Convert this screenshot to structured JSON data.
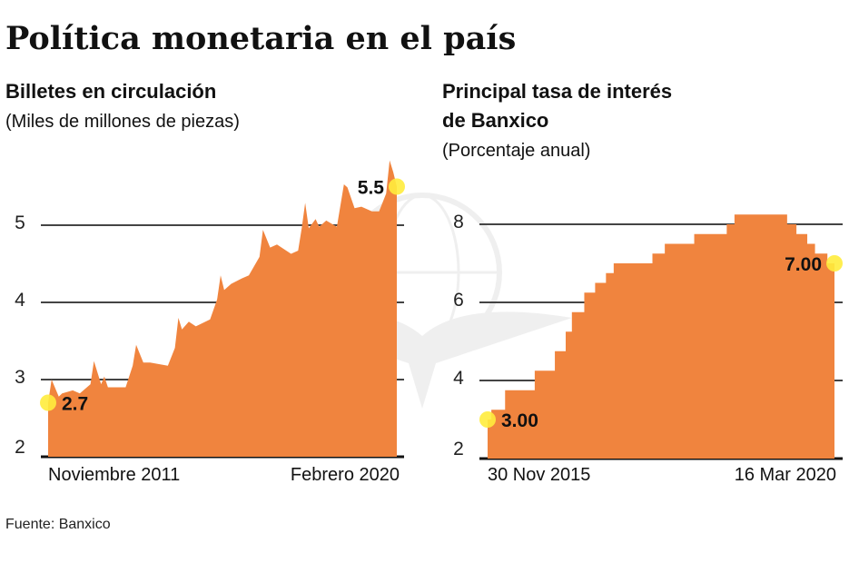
{
  "title": "Política monetaria en el país",
  "source": "Fuente: Banxico",
  "colors": {
    "area": "#f0843e",
    "highlight_dot": "#ffec3d",
    "gridline": "#444444"
  },
  "watermark": "Banxico eagle logo",
  "chart_data": [
    {
      "type": "area",
      "title": "Billetes en circulación",
      "subtitle": "(Miles de millones de piezas)",
      "ylim": [
        2,
        6
      ],
      "yticks": [
        "2",
        "3",
        "4",
        "5"
      ],
      "xtick_labels": [
        "Noviembre 2011",
        "Febrero 2020"
      ],
      "grid": true,
      "annotations": {
        "start": "2.7",
        "end": "5.5"
      },
      "points": [
        [
          "2011-11",
          2.7
        ],
        [
          "2011-12",
          3.0
        ],
        [
          "2012-02",
          2.78
        ],
        [
          "2012-03",
          2.82
        ],
        [
          "2012-06",
          2.86
        ],
        [
          "2012-08",
          2.82
        ],
        [
          "2012-11",
          2.94
        ],
        [
          "2012-12",
          3.24
        ],
        [
          "2013-02",
          2.94
        ],
        [
          "2013-03",
          3.04
        ],
        [
          "2013-04",
          2.9
        ],
        [
          "2013-09",
          2.9
        ],
        [
          "2013-11",
          3.18
        ],
        [
          "2013-12",
          3.45
        ],
        [
          "2014-02",
          3.22
        ],
        [
          "2014-04",
          3.22
        ],
        [
          "2014-09",
          3.18
        ],
        [
          "2014-11",
          3.41
        ],
        [
          "2014-12",
          3.8
        ],
        [
          "2015-01",
          3.65
        ],
        [
          "2015-03",
          3.75
        ],
        [
          "2015-05",
          3.69
        ],
        [
          "2015-09",
          3.78
        ],
        [
          "2015-11",
          4.04
        ],
        [
          "2015-12",
          4.35
        ],
        [
          "2016-01",
          4.16
        ],
        [
          "2016-03",
          4.24
        ],
        [
          "2016-06",
          4.31
        ],
        [
          "2016-08",
          4.35
        ],
        [
          "2016-11",
          4.59
        ],
        [
          "2016-12",
          4.94
        ],
        [
          "2017-02",
          4.71
        ],
        [
          "2017-04",
          4.75
        ],
        [
          "2017-08",
          4.63
        ],
        [
          "2017-10",
          4.67
        ],
        [
          "2017-11",
          4.96
        ],
        [
          "2017-12",
          5.29
        ],
        [
          "2018-01",
          4.96
        ],
        [
          "2018-03",
          5.08
        ],
        [
          "2018-04",
          4.98
        ],
        [
          "2018-06",
          5.06
        ],
        [
          "2018-09",
          4.98
        ],
        [
          "2018-11",
          5.53
        ],
        [
          "2018-12",
          5.49
        ],
        [
          "2019-02",
          5.22
        ],
        [
          "2019-04",
          5.24
        ],
        [
          "2019-07",
          5.18
        ],
        [
          "2019-09",
          5.18
        ],
        [
          "2019-11",
          5.41
        ],
        [
          "2019-12",
          5.84
        ],
        [
          "2020-01",
          5.69
        ],
        [
          "2020-02",
          5.5
        ]
      ]
    },
    {
      "type": "area",
      "step": true,
      "title": "Principal tasa de interés",
      "title_line2": "de Banxico",
      "subtitle": "(Porcentaje anual)",
      "ylim": [
        2,
        8.5
      ],
      "yticks": [
        "2",
        "4",
        "6",
        "8"
      ],
      "xtick_labels": [
        "30 Nov 2015",
        "16 Mar 2020"
      ],
      "grid": true,
      "annotations": {
        "start": "3.00",
        "end": "7.00"
      },
      "points": [
        [
          "2015-11-30",
          3.0
        ],
        [
          "2015-12-17",
          3.25
        ],
        [
          "2016-02-17",
          3.75
        ],
        [
          "2016-06-30",
          4.25
        ],
        [
          "2016-09-29",
          4.75
        ],
        [
          "2016-11-17",
          5.25
        ],
        [
          "2016-12-15",
          5.75
        ],
        [
          "2017-02-09",
          6.25
        ],
        [
          "2017-03-30",
          6.5
        ],
        [
          "2017-05-18",
          6.75
        ],
        [
          "2017-06-22",
          7.0
        ],
        [
          "2017-12-14",
          7.25
        ],
        [
          "2018-02-08",
          7.5
        ],
        [
          "2018-06-21",
          7.75
        ],
        [
          "2018-11-15",
          8.0
        ],
        [
          "2018-12-20",
          8.25
        ],
        [
          "2019-08-15",
          8.0
        ],
        [
          "2019-09-26",
          7.75
        ],
        [
          "2019-11-14",
          7.5
        ],
        [
          "2019-12-19",
          7.25
        ],
        [
          "2020-02-13",
          7.0
        ],
        [
          "2020-03-16",
          7.0
        ]
      ]
    }
  ]
}
